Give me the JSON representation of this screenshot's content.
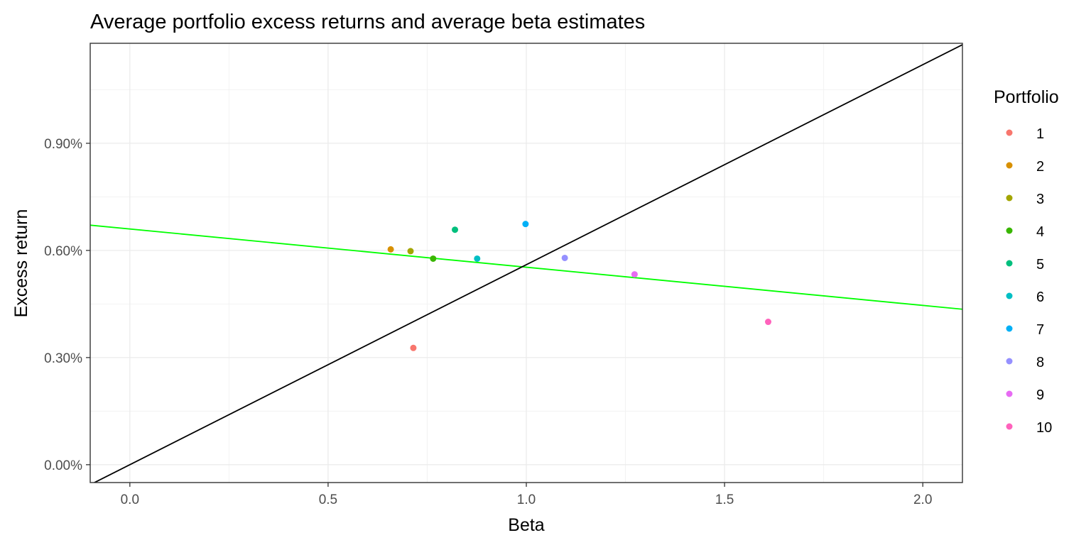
{
  "chart_data": {
    "type": "scatter",
    "title": "Average portfolio excess returns and average beta estimates",
    "xlabel": "Beta",
    "ylabel": "Excess return",
    "xlim": [
      -0.1,
      2.1
    ],
    "ylim": [
      -0.0005,
      0.0118
    ],
    "x_ticks": [
      0.0,
      0.5,
      1.0,
      1.5,
      2.0
    ],
    "x_tick_labels": [
      "0.0",
      "0.5",
      "1.0",
      "1.5",
      "2.0"
    ],
    "y_ticks": [
      0.0,
      0.003,
      0.006,
      0.009
    ],
    "y_tick_labels": [
      "0.00%",
      "0.30%",
      "0.60%",
      "0.90%"
    ],
    "grid": true,
    "legend": {
      "title": "Portfolio",
      "position": "right"
    },
    "series": [
      {
        "name": "1",
        "x": 0.715,
        "y": 0.00327,
        "color": "#F8766D"
      },
      {
        "name": "2",
        "x": 0.658,
        "y": 0.00603,
        "color": "#D89000"
      },
      {
        "name": "3",
        "x": 0.708,
        "y": 0.00598,
        "color": "#A3A500"
      },
      {
        "name": "4",
        "x": 0.765,
        "y": 0.00577,
        "color": "#39B600"
      },
      {
        "name": "5",
        "x": 0.82,
        "y": 0.00658,
        "color": "#00BF7D"
      },
      {
        "name": "6",
        "x": 0.876,
        "y": 0.00577,
        "color": "#00BFC4"
      },
      {
        "name": "7",
        "x": 0.998,
        "y": 0.00674,
        "color": "#00B0F6"
      },
      {
        "name": "8",
        "x": 1.097,
        "y": 0.00579,
        "color": "#9590FF"
      },
      {
        "name": "9",
        "x": 1.273,
        "y": 0.00533,
        "color": "#E76BF3"
      },
      {
        "name": "10",
        "x": 1.61,
        "y": 0.004,
        "color": "#FF62BC"
      }
    ],
    "lines": [
      {
        "kind": "regression-fit",
        "intercept": 0.0066,
        "slope": -0.00107,
        "color": "#00FF00"
      },
      {
        "kind": "security-market-line",
        "intercept": 0.0,
        "slope": 0.0056,
        "color": "#000000"
      }
    ]
  }
}
